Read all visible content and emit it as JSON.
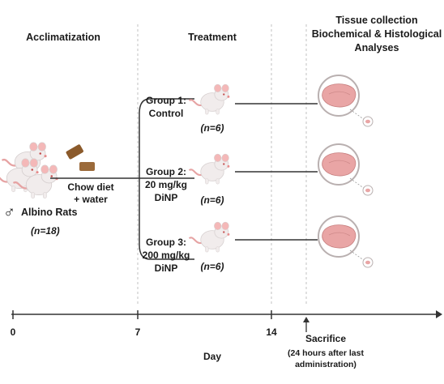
{
  "phases": {
    "acclimatization": "Acclimatization",
    "treatment": "Treatment",
    "collection": [
      "Tissue collection",
      "Biochemical & Histological",
      "Analyses"
    ]
  },
  "rats": {
    "label": "Albino Rats",
    "sex_symbol": "♂",
    "n": "(n=18)"
  },
  "diet": [
    "Chow diet",
    "+ water"
  ],
  "groups": [
    {
      "label": [
        "Group 1:",
        "Control"
      ],
      "n": "(n=6)"
    },
    {
      "label": [
        "Group 2:",
        "20 mg/kg",
        "DiNP"
      ],
      "n": "(n=6)"
    },
    {
      "label": [
        "Group 3:",
        "200 mg/kg",
        "DiNP"
      ],
      "n": "(n=6)"
    }
  ],
  "timeline": {
    "ticks": [
      "0",
      "7",
      "14"
    ],
    "axis_label": "Day",
    "sacrifice": "Sacrifice",
    "sacrifice_note": [
      "(24 hours after last",
      "administration)"
    ]
  },
  "colors": {
    "rat_body": "#f1ecec",
    "rat_ear": "#f4b8b8",
    "rat_tail": "#e6a3a3",
    "tissue": "#e9a5a5",
    "tissue_ring": "#b9b0b0",
    "chow": "#8b5a2b",
    "line": "#333333",
    "divider": "#c0c0c0"
  }
}
